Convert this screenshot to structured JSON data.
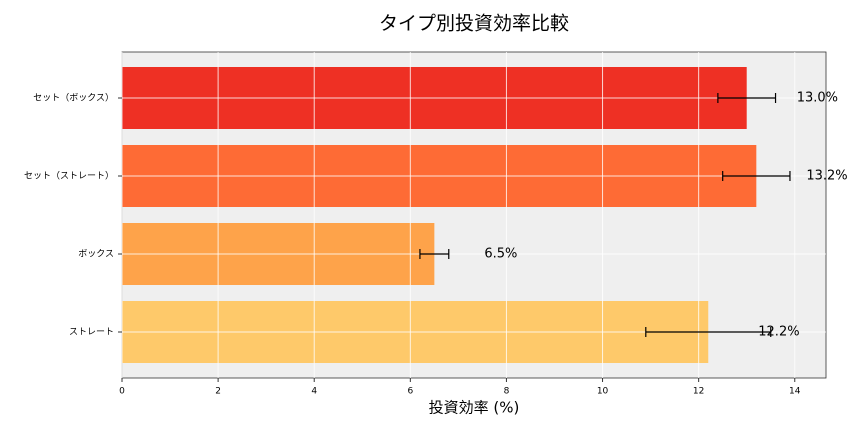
{
  "chart_data": {
    "type": "barh",
    "title": "タイプ別投資効率比較",
    "x_label": "投資効率 (%)",
    "categories": [
      "セット（ボックス）",
      "セット（ストレート）",
      "ボックス",
      "ストレート"
    ],
    "values": [
      13.0,
      13.2,
      6.5,
      12.2
    ],
    "value_labels": [
      "13.0%",
      "13.2%",
      "6.5%",
      "12.2%"
    ],
    "errors": [
      0.6,
      0.7,
      0.3,
      1.3
    ],
    "colors": [
      "#ee3024",
      "#fe6b35",
      "#fea34a",
      "#fec96a"
    ],
    "xlim": [
      0,
      14.65
    ],
    "xticks": [
      0,
      2,
      4,
      6,
      8,
      10,
      12,
      14
    ],
    "grid": true
  }
}
